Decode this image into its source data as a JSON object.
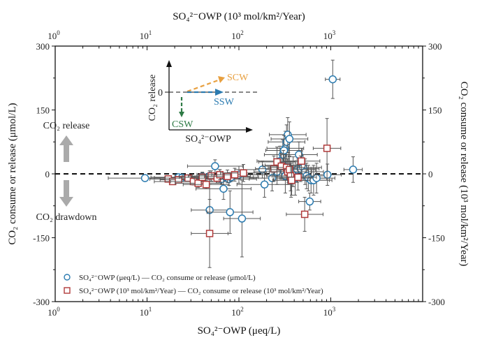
{
  "chart_data": {
    "type": "scatter",
    "title": "",
    "xlabel_bottom": "SO₄²⁻OWP (μeq/L)",
    "xlabel_top": "SO₄²⁻OWP (10³ mol/km²/Year)",
    "ylabel_left": "CO₂ consume or release (μmol/L)",
    "ylabel_right": "CO₂ consume or release (10³ mol/km²/Year)",
    "xscale": "log",
    "xlim": [
      1,
      10000
    ],
    "ylim": [
      -300,
      300
    ],
    "x_ticks": [
      {
        "value": 1,
        "base": "10",
        "exp": "0"
      },
      {
        "value": 10,
        "base": "10",
        "exp": "1"
      },
      {
        "value": 100,
        "base": "10",
        "exp": "2"
      },
      {
        "value": 1000,
        "base": "10",
        "exp": "3"
      }
    ],
    "y_ticks": [
      300,
      150,
      0,
      -150,
      -300
    ],
    "reference_line": {
      "y": 0,
      "style": "dashed"
    },
    "legend": {
      "placement": "bottom-left",
      "entries": [
        {
          "marker": "circle",
          "label": "SO₄²⁻OWP (μeq/L) — CO₂ consume or release (μmol/L)"
        },
        {
          "marker": "square",
          "label": "SO₄²⁻OWP (10³ mol/km²/Year) — CO₂ consume or release (10³ mol/km²/Year)"
        }
      ]
    },
    "colors": {
      "circle": "#2b7bb0",
      "square": "#b03a3a",
      "errorbar": "#555555"
    },
    "series": [
      {
        "name": "circle",
        "points": [
          {
            "x": 9.5,
            "y": -10,
            "xerr": 0.4,
            "yerr": 4
          },
          {
            "x": 22,
            "y": -8,
            "xerr": 0.3,
            "yerr": 6
          },
          {
            "x": 24,
            "y": -9,
            "xerr": 0.3,
            "yerr": 6
          },
          {
            "x": 40,
            "y": -6,
            "xerr": 0.3,
            "yerr": 10
          },
          {
            "x": 48,
            "y": -5,
            "xerr": 0.3,
            "yerr": 12
          },
          {
            "x": 55,
            "y": 18,
            "xerr": 0.3,
            "yerr": 15
          },
          {
            "x": 62,
            "y": -5,
            "xerr": 0.3,
            "yerr": 15
          },
          {
            "x": 65,
            "y": -12,
            "xerr": 0.3,
            "yerr": 12
          },
          {
            "x": 68,
            "y": -35,
            "xerr": 0.3,
            "yerr": 25
          },
          {
            "x": 72,
            "y": -8,
            "xerr": 0.3,
            "yerr": 10
          },
          {
            "x": 78,
            "y": -12,
            "xerr": 0.3,
            "yerr": 15
          },
          {
            "x": 82,
            "y": -8,
            "xerr": 0.3,
            "yerr": 10
          },
          {
            "x": 48,
            "y": -85,
            "xerr": 0.2,
            "yerr": 60
          },
          {
            "x": 80,
            "y": -90,
            "xerr": 0.25,
            "yerr": 50
          },
          {
            "x": 108,
            "y": -105,
            "xerr": 0.2,
            "yerr": 90
          },
          {
            "x": 100,
            "y": -2,
            "xerr": 0.3,
            "yerr": 20
          },
          {
            "x": 180,
            "y": 10,
            "xerr": 0.3,
            "yerr": 20
          },
          {
            "x": 190,
            "y": -25,
            "xerr": 0.3,
            "yerr": 30
          },
          {
            "x": 230,
            "y": -10,
            "xerr": 0.25,
            "yerr": 30
          },
          {
            "x": 260,
            "y": 5,
            "xerr": 0.25,
            "yerr": 30
          },
          {
            "x": 280,
            "y": 30,
            "xerr": 0.25,
            "yerr": 35
          },
          {
            "x": 300,
            "y": 45,
            "xerr": 0.2,
            "yerr": 35
          },
          {
            "x": 320,
            "y": 60,
            "xerr": 0.2,
            "yerr": 40
          },
          {
            "x": 330,
            "y": 75,
            "xerr": 0.2,
            "yerr": 40
          },
          {
            "x": 340,
            "y": 92,
            "xerr": 0.2,
            "yerr": 40
          },
          {
            "x": 355,
            "y": 82,
            "xerr": 0.2,
            "yerr": 40
          },
          {
            "x": 310,
            "y": 55,
            "xerr": 0.2,
            "yerr": 35
          },
          {
            "x": 305,
            "y": 20,
            "xerr": 0.2,
            "yerr": 35
          },
          {
            "x": 320,
            "y": -5,
            "xerr": 0.2,
            "yerr": 40
          },
          {
            "x": 345,
            "y": 15,
            "xerr": 0.2,
            "yerr": 35
          },
          {
            "x": 370,
            "y": -15,
            "xerr": 0.2,
            "yerr": 40
          },
          {
            "x": 390,
            "y": 5,
            "xerr": 0.2,
            "yerr": 35
          },
          {
            "x": 410,
            "y": -10,
            "xerr": 0.2,
            "yerr": 40
          },
          {
            "x": 430,
            "y": 10,
            "xerr": 0.2,
            "yerr": 30
          },
          {
            "x": 450,
            "y": 45,
            "xerr": 0.2,
            "yerr": 30
          },
          {
            "x": 470,
            "y": 12,
            "xerr": 0.2,
            "yerr": 30
          },
          {
            "x": 500,
            "y": 15,
            "xerr": 0.2,
            "yerr": 30
          },
          {
            "x": 525,
            "y": 5,
            "xerr": 0.2,
            "yerr": 30
          },
          {
            "x": 545,
            "y": -5,
            "xerr": 0.2,
            "yerr": 30
          },
          {
            "x": 570,
            "y": -10,
            "xerr": 0.2,
            "yerr": 30
          },
          {
            "x": 610,
            "y": -15,
            "xerr": 0.2,
            "yerr": 30
          },
          {
            "x": 650,
            "y": -15,
            "xerr": 0.2,
            "yerr": 35
          },
          {
            "x": 700,
            "y": -10,
            "xerr": 0.2,
            "yerr": 35
          },
          {
            "x": 590,
            "y": -65,
            "xerr": 0.12,
            "yerr": 20
          },
          {
            "x": 920,
            "y": -2,
            "xerr": 0.15,
            "yerr": 25
          },
          {
            "x": 1050,
            "y": 222,
            "xerr": 0.08,
            "yerr": 45
          },
          {
            "x": 1750,
            "y": 10,
            "xerr": 0.1,
            "yerr": 30
          }
        ]
      },
      {
        "name": "square",
        "points": [
          {
            "x": 17,
            "y": -12,
            "xerr": 0.2,
            "yerr": 6
          },
          {
            "x": 19,
            "y": -18,
            "xerr": 0.2,
            "yerr": 6
          },
          {
            "x": 22,
            "y": -14,
            "xerr": 0.2,
            "yerr": 6
          },
          {
            "x": 28,
            "y": -10,
            "xerr": 0.25,
            "yerr": 8
          },
          {
            "x": 32,
            "y": -18,
            "xerr": 0.25,
            "yerr": 8
          },
          {
            "x": 36,
            "y": -22,
            "xerr": 0.25,
            "yerr": 10
          },
          {
            "x": 40,
            "y": -8,
            "xerr": 0.25,
            "yerr": 10
          },
          {
            "x": 44,
            "y": -25,
            "xerr": 0.25,
            "yerr": 10
          },
          {
            "x": 50,
            "y": -5,
            "xerr": 0.25,
            "yerr": 12
          },
          {
            "x": 58,
            "y": -10,
            "xerr": 0.25,
            "yerr": 12
          },
          {
            "x": 62,
            "y": -2,
            "xerr": 0.25,
            "yerr": 12
          },
          {
            "x": 75,
            "y": -6,
            "xerr": 0.25,
            "yerr": 15
          },
          {
            "x": 90,
            "y": -2,
            "xerr": 0.25,
            "yerr": 15
          },
          {
            "x": 112,
            "y": 2,
            "xerr": 0.25,
            "yerr": 20
          },
          {
            "x": 240,
            "y": 12,
            "xerr": 0.2,
            "yerr": 30
          },
          {
            "x": 260,
            "y": 28,
            "xerr": 0.2,
            "yerr": 35
          },
          {
            "x": 290,
            "y": 18,
            "xerr": 0.2,
            "yerr": 30
          },
          {
            "x": 330,
            "y": 15,
            "xerr": 0.2,
            "yerr": 30
          },
          {
            "x": 340,
            "y": 5,
            "xerr": 0.2,
            "yerr": 30
          },
          {
            "x": 355,
            "y": 10,
            "xerr": 0.2,
            "yerr": 30
          },
          {
            "x": 365,
            "y": -5,
            "xerr": 0.2,
            "yerr": 35
          },
          {
            "x": 375,
            "y": -15,
            "xerr": 0.2,
            "yerr": 35
          },
          {
            "x": 440,
            "y": -8,
            "xerr": 0.2,
            "yerr": 30
          },
          {
            "x": 480,
            "y": 30,
            "xerr": 0.2,
            "yerr": 30
          },
          {
            "x": 520,
            "y": -95,
            "xerr": 0.2,
            "yerr": 40
          },
          {
            "x": 910,
            "y": 60,
            "xerr": 0.15,
            "yerr": 70
          },
          {
            "x": 48,
            "y": -140,
            "xerr": 0.2,
            "yerr": 80
          }
        ]
      }
    ],
    "inset": {
      "ylabel": "CO₂ release",
      "xlabel": "SO₄²⁻OWP",
      "zero_label": "0",
      "arrows": [
        {
          "label": "SCW",
          "direction": "up-right",
          "color": "#e8a040"
        },
        {
          "label": "SSW",
          "direction": "right",
          "color": "#2b7bb0"
        },
        {
          "label": "CSW",
          "direction": "down",
          "color": "#2e7a45"
        }
      ]
    },
    "annotations": [
      {
        "text": "CO₂ release",
        "arrow": "up",
        "color": "#aaaaaa"
      },
      {
        "text": "CO₂ drawdown",
        "arrow": "down",
        "color": "#aaaaaa"
      }
    ]
  }
}
